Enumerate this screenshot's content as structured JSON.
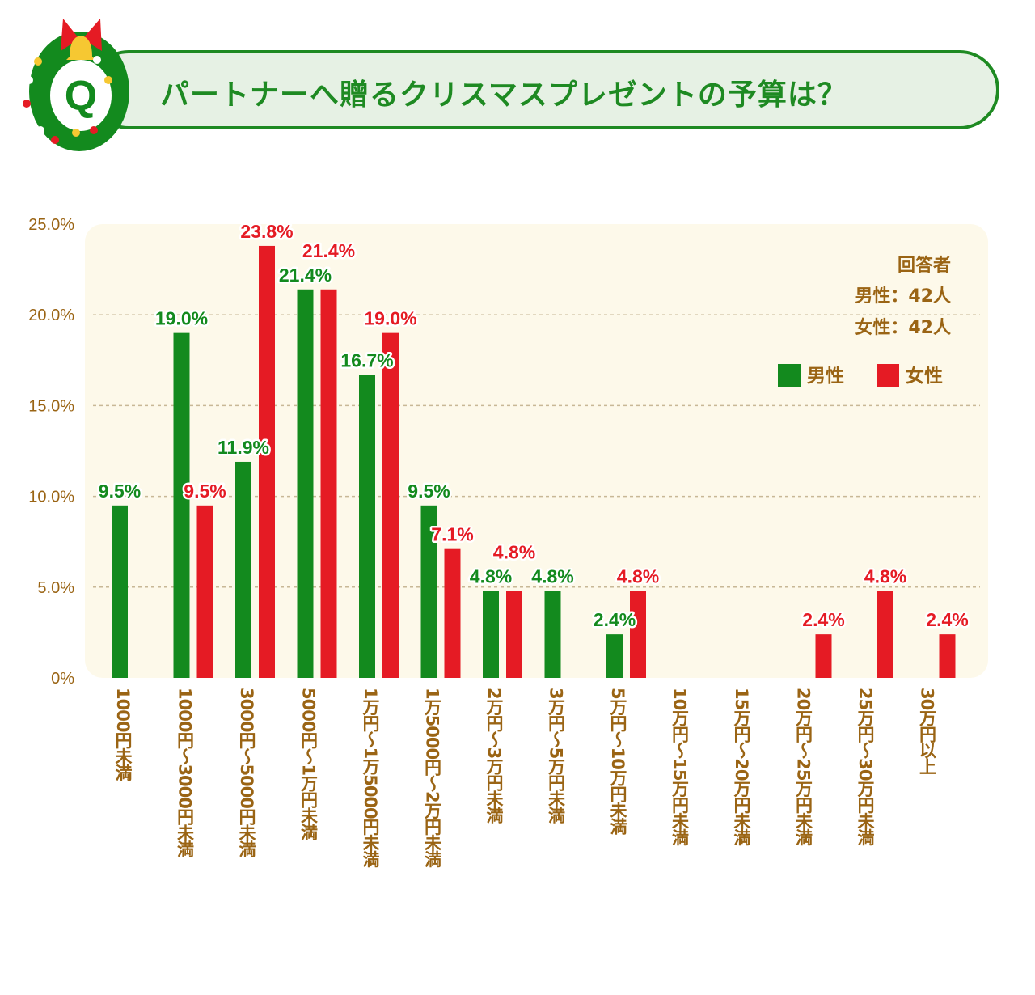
{
  "title": "パートナーへ贈るクリスマスプレゼントの予算は？",
  "badge_letter": "Q",
  "colors": {
    "male": "#138a1e",
    "female": "#e51b24",
    "axis_text": "#9a6414",
    "plot_bg": "#fdf9ea",
    "title": "#1e8a22"
  },
  "icons": [
    "wreath-icon",
    "bell-icon",
    "ribbon-icon"
  ],
  "chart_data": {
    "type": "bar",
    "title": "パートナーへ贈るクリスマスプレゼントの予算は？",
    "categories": [
      "1000円未満",
      "1000円～3000円未満",
      "3000円～5000円未満",
      "5000円～1万円未満",
      "1万円～1万5000円未満",
      "1万5000円～2万円未満",
      "2万円～3万円未満",
      "3万円～5万円未満",
      "5万円～10万円未満",
      "10万円～15万円未満",
      "15万円～20万円未満",
      "20万円～25万円未満",
      "25万円～30万円未満",
      "30万円以上"
    ],
    "series": [
      {
        "name": "男性",
        "values": [
          9.5,
          19.0,
          11.9,
          21.4,
          16.7,
          9.5,
          4.8,
          4.8,
          2.4,
          0,
          0,
          0,
          0,
          0
        ]
      },
      {
        "name": "女性",
        "values": [
          0,
          9.5,
          23.8,
          21.4,
          19.0,
          7.1,
          4.8,
          0,
          4.8,
          0,
          0,
          2.4,
          4.8,
          2.4
        ]
      }
    ],
    "ylim": [
      0,
      25
    ],
    "yticks": [
      "0%",
      "5.0%",
      "10.0%",
      "15.0%",
      "20.0%",
      "25.0%"
    ],
    "grid": true,
    "legend_placement": "top-right",
    "respondents": {
      "heading": "回答者",
      "male": "男性：42人",
      "female": "女性：42人"
    }
  }
}
